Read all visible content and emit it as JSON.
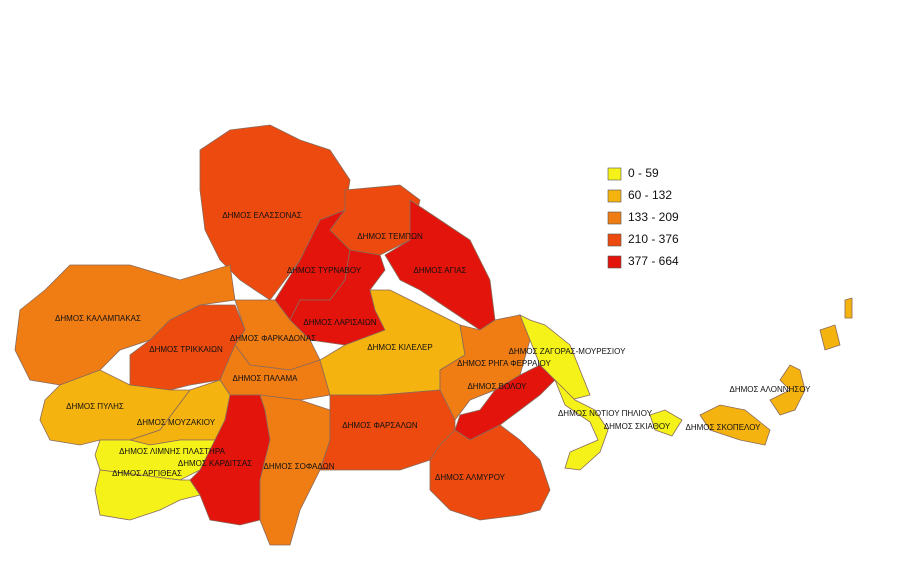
{
  "legend": [
    {
      "label": "0 - 59",
      "color": "#f5f21a"
    },
    {
      "label": "60 - 132",
      "color": "#f5b30f"
    },
    {
      "label": "133 - 209",
      "color": "#f07c14"
    },
    {
      "label": "210 - 376",
      "color": "#ec4a0e"
    },
    {
      "label": "377 - 664",
      "color": "#e3140c"
    }
  ],
  "regions": [
    {
      "name": "ΔΗΜΟΣ ΕΛΑΣΣΟΝΑΣ",
      "color": "#ec4a0e"
    },
    {
      "name": "ΔΗΜΟΣ ΤΕΜΠΩΝ",
      "color": "#ec4a0e"
    },
    {
      "name": "ΔΗΜΟΣ ΑΓΙΑΣ",
      "color": "#e3140c"
    },
    {
      "name": "ΔΗΜΟΣ ΤΥΡΝΑΒΟΥ",
      "color": "#e3140c"
    },
    {
      "name": "ΔΗΜΟΣ ΛΑΡΙΣΑΙΩΝ",
      "color": "#e3140c"
    },
    {
      "name": "ΔΗΜΟΣ ΚΑΛΑΜΠΑΚΑΣ",
      "color": "#f07c14"
    },
    {
      "name": "ΔΗΜΟΣ ΤΡΙΚΚΑΙΩΝ",
      "color": "#ec4a0e"
    },
    {
      "name": "ΔΗΜΟΣ ΦΑΡΚΑΔΟΝΑΣ",
      "color": "#f07c14"
    },
    {
      "name": "ΔΗΜΟΣ ΠΑΛΑΜΑ",
      "color": "#f07c14"
    },
    {
      "name": "ΔΗΜΟΣ ΚΙΛΕΛΕΡ",
      "color": "#f5b30f"
    },
    {
      "name": "ΔΗΜΟΣ ΡΗΓΑ ΦΕΡΡΑΙΟΥ",
      "color": "#f07c14"
    },
    {
      "name": "ΔΗΜΟΣ ΒΟΛΟΥ",
      "color": "#e3140c"
    },
    {
      "name": "ΔΗΜΟΣ ΖΑΓΟΡΑΣ-ΜΟΥΡΕΣΙΟΥ",
      "color": "#f5f21a"
    },
    {
      "name": "ΔΗΜΟΣ ΝΟΤΙΟΥ ΠΗΛΙΟΥ",
      "color": "#f5f21a"
    },
    {
      "name": "ΔΗΜΟΣ ΣΚΙΑΘΟΥ",
      "color": "#f5f21a"
    },
    {
      "name": "ΔΗΜΟΣ ΣΚΟΠΕΛΟΥ",
      "color": "#f5b30f"
    },
    {
      "name": "ΔΗΜΟΣ ΑΛΟΝΝΗΣΟΥ",
      "color": "#f5b30f"
    },
    {
      "name": "ΔΗΜΟΣ ΠΥΛΗΣ",
      "color": "#f5b30f"
    },
    {
      "name": "ΔΗΜΟΣ ΜΟΥΖΑΚΙΟΥ",
      "color": "#f5b30f"
    },
    {
      "name": "ΔΗΜΟΣ ΛΙΜΝΗΣ ΠΛΑΣΤΗΡΑ",
      "color": "#f5f21a"
    },
    {
      "name": "ΔΗΜΟΣ ΚΑΡΔΙΤΣΑΣ",
      "color": "#e3140c"
    },
    {
      "name": "ΔΗΜΟΣ ΑΡΓΙΘΕΑΣ",
      "color": "#f5f21a"
    },
    {
      "name": "ΔΗΜΟΣ ΣΟΦΑΔΩΝ",
      "color": "#f07c14"
    },
    {
      "name": "ΔΗΜΟΣ ΦΑΡΣΑΛΩΝ",
      "color": "#ec4a0e"
    },
    {
      "name": "ΔΗΜΟΣ ΑΛΜΥΡΟΥ",
      "color": "#ec4a0e"
    }
  ]
}
